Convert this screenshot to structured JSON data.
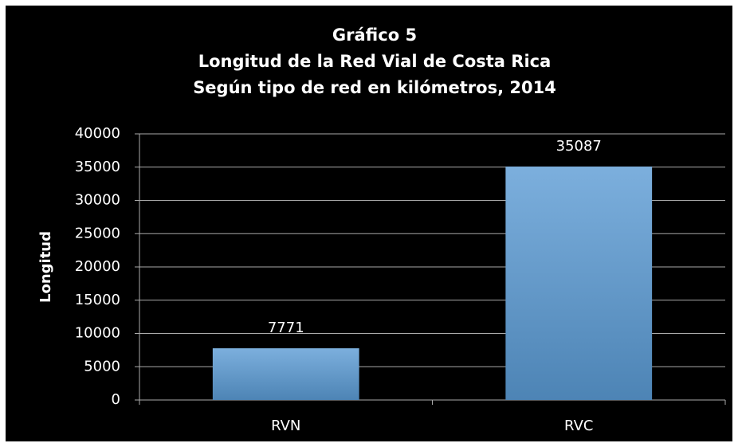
{
  "chart_data": {
    "type": "bar",
    "title": [
      "Gráfico 5",
      "Longitud de la Red Vial de Costa Rica",
      "Según tipo de red en kilómetros, 2014"
    ],
    "y_label": "Longitud",
    "categories": [
      "RVN",
      "RVC"
    ],
    "values": [
      7771,
      35087
    ],
    "color": "#5b9bd5",
    "ylim": [
      0,
      40000
    ],
    "yticks": [
      0,
      5000,
      10000,
      15000,
      20000,
      25000,
      30000,
      35000,
      40000
    ],
    "grid": true
  }
}
